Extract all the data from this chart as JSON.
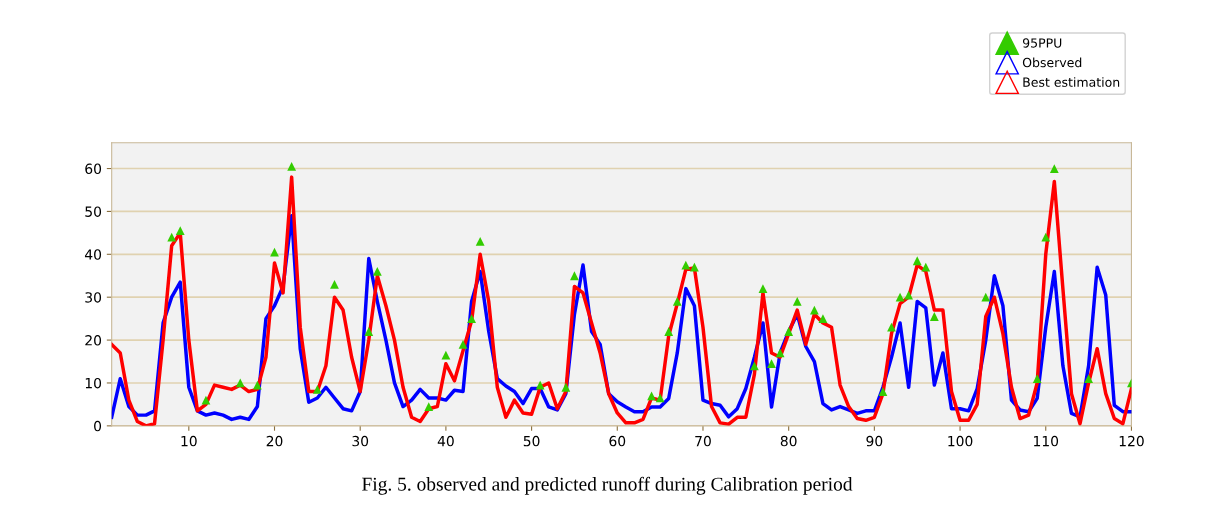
{
  "chart_data": {
    "type": "line",
    "x": [
      1,
      2,
      3,
      4,
      5,
      6,
      7,
      8,
      9,
      10,
      11,
      12,
      13,
      14,
      15,
      16,
      17,
      18,
      19,
      20,
      21,
      22,
      23,
      24,
      25,
      26,
      27,
      28,
      29,
      30,
      31,
      32,
      33,
      34,
      35,
      36,
      37,
      38,
      39,
      40,
      41,
      42,
      43,
      44,
      45,
      46,
      47,
      48,
      49,
      50,
      51,
      52,
      53,
      54,
      55,
      56,
      57,
      58,
      59,
      60,
      61,
      62,
      63,
      64,
      65,
      66,
      67,
      68,
      69,
      70,
      71,
      72,
      73,
      74,
      75,
      76,
      77,
      78,
      79,
      80,
      81,
      82,
      83,
      84,
      85,
      86,
      87,
      88,
      89,
      90,
      91,
      92,
      93,
      94,
      95,
      96,
      97,
      98,
      99,
      100,
      101,
      102,
      103,
      104,
      105,
      106,
      107,
      108,
      109,
      110,
      111,
      112,
      113,
      114,
      115,
      116,
      117,
      118,
      119,
      120
    ],
    "series": [
      {
        "name": "95PPU",
        "type": "scatter",
        "color": "#33cc00",
        "marker": "triangle",
        "values": [
          null,
          null,
          null,
          null,
          null,
          null,
          null,
          44,
          45.5,
          null,
          null,
          6,
          null,
          null,
          null,
          10,
          null,
          9.5,
          null,
          40.5,
          null,
          60.5,
          null,
          null,
          8.5,
          null,
          33,
          null,
          null,
          null,
          22,
          36,
          null,
          null,
          null,
          null,
          null,
          4.5,
          null,
          16.5,
          null,
          19,
          25,
          43,
          null,
          null,
          null,
          null,
          null,
          null,
          9.5,
          null,
          null,
          9,
          35,
          null,
          null,
          null,
          null,
          null,
          null,
          null,
          null,
          7,
          6.5,
          22,
          29,
          37.5,
          37,
          null,
          null,
          null,
          null,
          null,
          null,
          14,
          32,
          14.5,
          17,
          22,
          29,
          null,
          27,
          25,
          null,
          null,
          null,
          null,
          null,
          null,
          8,
          23,
          30,
          30.5,
          38.5,
          37,
          25.5,
          null,
          null,
          null,
          null,
          null,
          30,
          null,
          null,
          null,
          null,
          null,
          11,
          44,
          60,
          null,
          null,
          null,
          11,
          null,
          null,
          null,
          null,
          10
        ]
      },
      {
        "name": "Observed",
        "type": "line",
        "color": "#0000ff",
        "values": [
          2,
          11,
          4.5,
          2.5,
          2.5,
          3.5,
          24,
          30,
          33.5,
          9,
          3.5,
          2.5,
          3,
          2.5,
          1.5,
          2,
          1.5,
          4.5,
          25,
          28,
          32.5,
          49,
          18,
          5.5,
          6.5,
          9,
          6.5,
          4,
          3.5,
          8,
          39,
          29,
          20,
          10,
          4.5,
          6,
          8.5,
          6.5,
          6.5,
          6,
          8.3,
          8,
          29,
          36,
          22,
          11,
          9.3,
          8,
          5.2,
          8.7,
          8.7,
          4.4,
          3.7,
          7.5,
          26,
          37.5,
          22,
          19,
          7.5,
          5.6,
          4.4,
          3.3,
          3.3,
          4.4,
          4.4,
          6.4,
          17,
          32,
          28,
          6,
          5.2,
          4.8,
          2.1,
          4,
          8.7,
          16,
          24,
          4.4,
          17,
          22,
          26,
          18.5,
          15,
          5.2,
          3.7,
          4.5,
          3.7,
          2.9,
          3.5,
          3.5,
          9,
          16,
          24,
          9,
          29,
          27.5,
          9.5,
          17,
          4,
          4,
          3.5,
          8.7,
          20,
          35,
          28,
          6,
          3.7,
          3.3,
          6.4,
          23,
          36,
          14,
          2.9,
          2.1,
          14,
          37,
          30.5,
          4.8,
          3.3,
          3.3
        ]
      },
      {
        "name": "Best estimation",
        "type": "line",
        "color": "#ff0000",
        "values": [
          19,
          17,
          6,
          1,
          0,
          0.5,
          20,
          42,
          45,
          20,
          3.5,
          5,
          9.5,
          9,
          8.5,
          9.5,
          8,
          8.5,
          16,
          38,
          31,
          58,
          23,
          8,
          8,
          14,
          30,
          27,
          16,
          8,
          20,
          35,
          28,
          20,
          9,
          2,
          1,
          4,
          4.5,
          14.5,
          10.5,
          17.5,
          24.5,
          40,
          29,
          9,
          2,
          6,
          3,
          2.7,
          9,
          10,
          4,
          8,
          32.5,
          31,
          24,
          17,
          7.5,
          3,
          0.7,
          0.7,
          1.5,
          6.5,
          6,
          21,
          28.5,
          36.5,
          36.8,
          23,
          4.5,
          0.7,
          0.4,
          2,
          2,
          12,
          31,
          17,
          16,
          21.5,
          27,
          19,
          26,
          24,
          23,
          9.5,
          4.5,
          1.7,
          1.3,
          2,
          7.5,
          21.5,
          28.5,
          30,
          37.5,
          36,
          27,
          27,
          8,
          1.3,
          1.3,
          5,
          25.5,
          30,
          21.5,
          9,
          1.7,
          2.5,
          10,
          40,
          57,
          32,
          7.5,
          0.5,
          10,
          18,
          7.5,
          1.7,
          0.5,
          8.7
        ]
      }
    ],
    "xlim": [
      1,
      120
    ],
    "xticks": [
      10,
      20,
      30,
      40,
      50,
      60,
      70,
      80,
      90,
      100,
      110,
      120
    ],
    "ylim": [
      0,
      66
    ],
    "yticks": [
      0,
      10,
      20,
      30,
      40,
      50,
      60
    ],
    "grid": "y",
    "legend": "top right",
    "marker": "none",
    "line_style": "solid",
    "annotations": [
      "Fig. 5. observed and predicted runoff during Calibration period"
    ]
  }
}
